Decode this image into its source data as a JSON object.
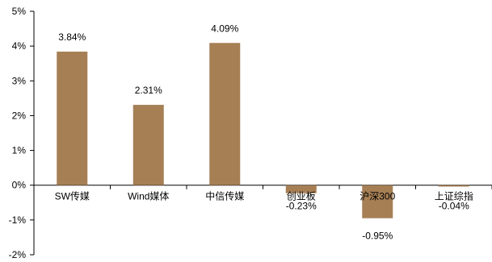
{
  "chart_data": {
    "type": "bar",
    "title": "",
    "xlabel": "",
    "ylabel": "",
    "categories": [
      "SW传媒",
      "Wind媒体",
      "中信传媒",
      "创业板",
      "沪深300",
      "上证综指"
    ],
    "values": [
      3.84,
      2.31,
      4.09,
      -0.23,
      -0.95,
      -0.04
    ],
    "data_labels": [
      "3.84%",
      "2.31%",
      "4.09%",
      "-0.23%",
      "-0.95%",
      "-0.04%"
    ],
    "ylim": [
      -2,
      5
    ],
    "yticks": [
      5,
      4,
      3,
      2,
      1,
      0,
      -1,
      -2
    ],
    "ytick_labels": [
      "5%",
      "4%",
      "3%",
      "2%",
      "1%",
      "0%",
      "-1%",
      "-2%"
    ],
    "grid": false,
    "legend": "none",
    "bar_color": "#A67F55"
  }
}
